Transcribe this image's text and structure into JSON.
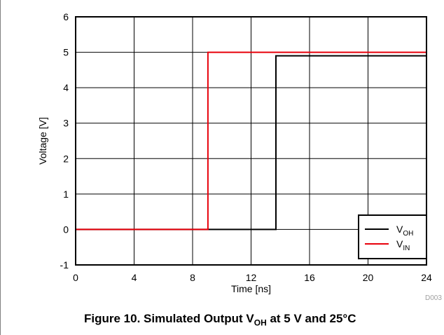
{
  "chart_data": {
    "type": "line",
    "xlabel": "Time [ns]",
    "ylabel": "Voltage [V]",
    "xlim": [
      0,
      24
    ],
    "ylim": [
      -1,
      6
    ],
    "xticks": [
      0,
      4,
      8,
      12,
      16,
      20,
      24
    ],
    "yticks": [
      -1,
      0,
      1,
      2,
      3,
      4,
      5,
      6
    ],
    "grid": true,
    "legend_position": "bottom-right",
    "series": [
      {
        "name": "VOH",
        "label_main": "V",
        "label_sub": "OH",
        "color": "#000000",
        "points": [
          [
            0,
            0
          ],
          [
            13.7,
            0
          ],
          [
            13.7,
            4.9
          ],
          [
            24,
            4.9
          ]
        ]
      },
      {
        "name": "VIN",
        "label_main": "V",
        "label_sub": "IN",
        "color": "#e8000b",
        "points": [
          [
            0,
            0
          ],
          [
            9.05,
            0
          ],
          [
            9.05,
            5
          ],
          [
            24,
            5
          ]
        ]
      }
    ],
    "code_label": "D003"
  },
  "caption": {
    "prefix": "Figure 10. Simulated Output V",
    "sub": "OH",
    "suffix": " at 5 V and 25°C"
  }
}
